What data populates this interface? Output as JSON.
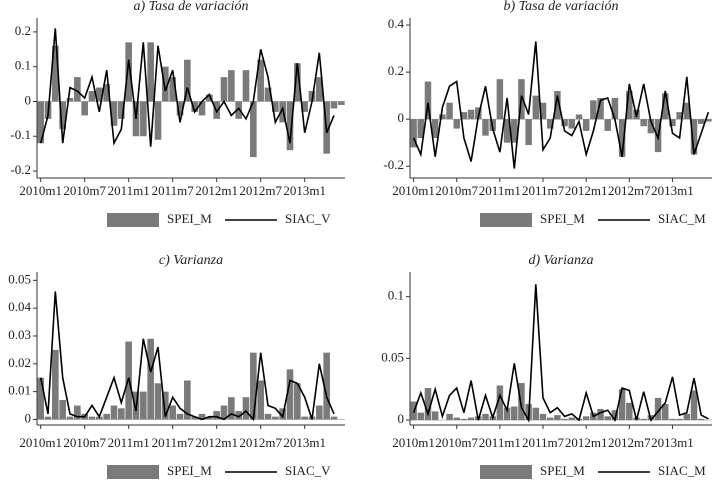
{
  "chart_data": [
    {
      "type": "bar-line",
      "title": "a) Tasa de variación",
      "categories": [
        "2010m1",
        null,
        null,
        null,
        null,
        null,
        "2010m7",
        null,
        null,
        null,
        null,
        null,
        "2011m1",
        null,
        null,
        null,
        null,
        null,
        "2011m7",
        null,
        null,
        null,
        null,
        null,
        "2012m1",
        null,
        null,
        null,
        null,
        null,
        "2012m7",
        null,
        null,
        null,
        null,
        null,
        "2013m1",
        null,
        null,
        null,
        null,
        null
      ],
      "series": [
        {
          "name": "SPEI_M",
          "kind": "bar",
          "color": "#7a7a7a",
          "values": [
            -0.12,
            -0.05,
            0.16,
            -0.08,
            0.01,
            0.07,
            -0.04,
            0.03,
            0.04,
            0.05,
            -0.07,
            -0.05,
            0.17,
            -0.1,
            -0.1,
            0.17,
            -0.11,
            0.1,
            0.07,
            -0.04,
            0.12,
            -0.03,
            -0.04,
            0.02,
            -0.05,
            0.07,
            0.09,
            -0.05,
            0.09,
            -0.16,
            0.12,
            0.04,
            -0.03,
            -0.06,
            -0.14,
            0.11,
            -0.03,
            0.03,
            0.07,
            -0.15,
            -0.02,
            -0.01
          ]
        },
        {
          "name": "SIAC_V",
          "kind": "line",
          "color": "#000000",
          "values": [
            -0.12,
            -0.04,
            0.21,
            -0.12,
            0.04,
            0.03,
            0.01,
            0.07,
            -0.03,
            0.09,
            -0.12,
            -0.08,
            0.12,
            -0.05,
            0.17,
            -0.13,
            0.16,
            0.03,
            0.09,
            -0.06,
            0.04,
            -0.03,
            0.0,
            0.02,
            -0.03,
            0.0,
            -0.04,
            -0.02,
            -0.05,
            0.0,
            0.15,
            0.07,
            -0.06,
            -0.02,
            -0.12,
            0.11,
            -0.09,
            0.0,
            0.14,
            -0.09,
            -0.04,
            null
          ]
        }
      ],
      "ylim": [
        -0.22,
        0.24
      ],
      "yticks": [
        -0.2,
        -0.1,
        0,
        0.1,
        0.2
      ]
    },
    {
      "type": "bar-line",
      "title": "b) Tasa de variación",
      "categories": [
        "2010m1",
        null,
        null,
        null,
        null,
        null,
        "2010m7",
        null,
        null,
        null,
        null,
        null,
        "2011m1",
        null,
        null,
        null,
        null,
        null,
        "2011m7",
        null,
        null,
        null,
        null,
        null,
        "2012m1",
        null,
        null,
        null,
        null,
        null,
        "2012m7",
        null,
        null,
        null,
        null,
        null,
        "2013m1",
        null,
        null,
        null,
        null,
        null
      ],
      "series": [
        {
          "name": "SPEI_M",
          "kind": "bar",
          "color": "#7a7a7a",
          "values": [
            -0.12,
            -0.08,
            0.16,
            -0.08,
            0.02,
            0.07,
            -0.04,
            0.03,
            0.04,
            0.05,
            -0.07,
            -0.05,
            0.17,
            -0.1,
            -0.1,
            0.17,
            -0.11,
            0.1,
            0.07,
            -0.04,
            0.12,
            -0.03,
            -0.04,
            0.02,
            -0.05,
            0.08,
            0.09,
            -0.05,
            0.09,
            -0.16,
            0.12,
            0.04,
            -0.03,
            -0.06,
            -0.14,
            0.11,
            -0.03,
            0.03,
            0.07,
            -0.15,
            -0.02,
            -0.01
          ]
        },
        {
          "name": "SIAC_M",
          "kind": "line",
          "color": "#000000",
          "values": [
            -0.08,
            -0.15,
            0.07,
            -0.16,
            0.05,
            0.14,
            0.16,
            -0.08,
            -0.18,
            0.01,
            0.14,
            -0.04,
            -0.14,
            0.09,
            -0.21,
            0.1,
            0.02,
            0.33,
            -0.13,
            -0.08,
            0.1,
            -0.05,
            -0.07,
            -0.01,
            -0.15,
            -0.05,
            0.08,
            0.09,
            0.0,
            -0.16,
            0.15,
            0.01,
            0.15,
            -0.01,
            -0.08,
            0.12,
            -0.06,
            -0.08,
            0.18,
            -0.15,
            -0.06,
            0.03
          ]
        }
      ],
      "ylim": [
        -0.25,
        0.43
      ],
      "yticks": [
        -0.2,
        0,
        0.2,
        0.4
      ]
    },
    {
      "type": "bar-line",
      "title": "c) Varianza",
      "categories": [
        "2010m1",
        null,
        null,
        null,
        null,
        null,
        "2010m7",
        null,
        null,
        null,
        null,
        null,
        "2011m1",
        null,
        null,
        null,
        null,
        null,
        "2011m7",
        null,
        null,
        null,
        null,
        null,
        "2012m1",
        null,
        null,
        null,
        null,
        null,
        "2012m7",
        null,
        null,
        null,
        null,
        null,
        "2013m1",
        null,
        null,
        null,
        null,
        null
      ],
      "series": [
        {
          "name": "SPEI_M",
          "kind": "bar",
          "color": "#7a7a7a",
          "values": [
            0.015,
            0.001,
            0.025,
            0.007,
            0.001,
            0.005,
            0.002,
            0.001,
            0.001,
            0.002,
            0.005,
            0.004,
            0.028,
            0.01,
            0.01,
            0.029,
            0.013,
            0.01,
            0.005,
            0.002,
            0.014,
            0.001,
            0.002,
            0.001,
            0.003,
            0.005,
            0.008,
            0.003,
            0.008,
            0.024,
            0.014,
            0.002,
            0.001,
            0.004,
            0.018,
            0.013,
            0.001,
            0.001,
            0.005,
            0.024,
            0.001,
            0.0
          ]
        },
        {
          "name": "SIAC_V",
          "kind": "line",
          "color": "#000000",
          "values": [
            0.015,
            0.002,
            0.046,
            0.015,
            0.002,
            0.001,
            0.001,
            0.005,
            0.001,
            0.008,
            0.015,
            0.006,
            0.015,
            0.003,
            0.029,
            0.017,
            0.026,
            0.001,
            0.008,
            0.004,
            0.002,
            0.001,
            0.0,
            0.001,
            0.001,
            0.0,
            0.002,
            0.001,
            0.003,
            0.0,
            0.024,
            0.005,
            0.004,
            0.001,
            0.014,
            0.013,
            0.008,
            0.0,
            0.02,
            0.008,
            0.002,
            null
          ]
        }
      ],
      "ylim": [
        -0.002,
        0.053
      ],
      "yticks": [
        0,
        0.01,
        0.02,
        0.03,
        0.04,
        0.05
      ]
    },
    {
      "type": "bar-line",
      "title": "d) Varianza",
      "categories": [
        "2010m1",
        null,
        null,
        null,
        null,
        null,
        "2010m7",
        null,
        null,
        null,
        null,
        null,
        "2011m1",
        null,
        null,
        null,
        null,
        null,
        "2011m7",
        null,
        null,
        null,
        null,
        null,
        "2012m1",
        null,
        null,
        null,
        null,
        null,
        "2012m7",
        null,
        null,
        null,
        null,
        null,
        "2013m1",
        null,
        null,
        null,
        null,
        null
      ],
      "series": [
        {
          "name": "SPEI_M",
          "kind": "bar",
          "color": "#7a7a7a",
          "values": [
            0.015,
            0.006,
            0.026,
            0.007,
            0.0,
            0.005,
            0.002,
            0.001,
            0.002,
            0.003,
            0.005,
            0.003,
            0.028,
            0.01,
            0.011,
            0.03,
            0.013,
            0.01,
            0.005,
            0.002,
            0.004,
            0.001,
            0.002,
            0.001,
            0.003,
            0.006,
            0.009,
            0.003,
            0.008,
            0.025,
            0.014,
            0.002,
            0.001,
            0.004,
            0.018,
            0.013,
            0.001,
            0.001,
            0.005,
            0.024,
            0.001,
            0.0
          ]
        },
        {
          "name": "SIAC_M",
          "kind": "line",
          "color": "#000000",
          "values": [
            0.006,
            0.022,
            0.005,
            0.025,
            0.003,
            0.02,
            0.026,
            0.006,
            0.032,
            0.0,
            0.02,
            0.002,
            0.02,
            0.008,
            0.046,
            0.01,
            0.0,
            0.11,
            0.018,
            0.006,
            0.01,
            0.003,
            0.005,
            0.0,
            0.022,
            0.003,
            0.006,
            0.008,
            0.0,
            0.026,
            0.024,
            0.0,
            0.023,
            0.0,
            0.007,
            0.014,
            0.035,
            0.004,
            0.006,
            0.034,
            0.004,
            0.001
          ]
        }
      ],
      "ylim": [
        -0.004,
        0.12
      ],
      "yticks": [
        0,
        0.05,
        0.1
      ]
    }
  ]
}
